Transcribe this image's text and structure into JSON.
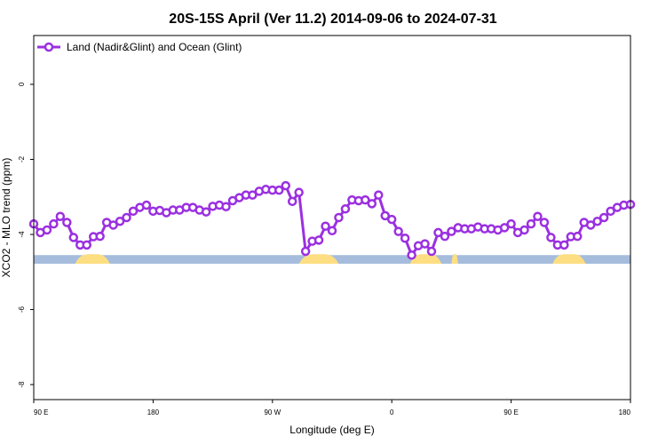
{
  "chart_data": {
    "type": "line",
    "title": "20S-15S April (Ver 11.2)   2014-09-06 to 2024-07-31",
    "xlabel": "Longitude (deg E)",
    "ylabel": "XCO2 - MLO trend (ppm)",
    "xlim": [
      0,
      360
    ],
    "ylim": [
      -8.4,
      1.3
    ],
    "x_ticks": [
      {
        "value": 0,
        "label": "90 E"
      },
      {
        "value": 72,
        "label": "180"
      },
      {
        "value": 144,
        "label": "90 W"
      },
      {
        "value": 216,
        "label": "0"
      },
      {
        "value": 288,
        "label": "90 E"
      },
      {
        "value": 360,
        "label": "180"
      }
    ],
    "y_ticks": [
      {
        "value": 0,
        "label": "0"
      },
      {
        "value": -2,
        "label": "-2"
      },
      {
        "value": -4,
        "label": "-4"
      },
      {
        "value": -6,
        "label": "-6"
      },
      {
        "value": -8,
        "label": "-8"
      }
    ],
    "grid": false,
    "legend": {
      "position": "top-left"
    },
    "series": [
      {
        "name": "Land (Nadir&Glint) and Ocean (Glint)",
        "color": "#9b30e0",
        "x": [
          0,
          4,
          8,
          12,
          16,
          20,
          24,
          28,
          32,
          36,
          40,
          44,
          48,
          52,
          56,
          60,
          64,
          68,
          72,
          76,
          80,
          84,
          88,
          92,
          96,
          100,
          104,
          108,
          112,
          116,
          120,
          124,
          128,
          132,
          136,
          140,
          144,
          148,
          152,
          156,
          160,
          164,
          168,
          172,
          176,
          180,
          184,
          188,
          192,
          196,
          200,
          204,
          208,
          212,
          216,
          220,
          224,
          228,
          232,
          236,
          240,
          244,
          248,
          252,
          256,
          260,
          264,
          268,
          272,
          276,
          280,
          284,
          288,
          292,
          296,
          300,
          304,
          308,
          312,
          316,
          320,
          324,
          328,
          332,
          336,
          340,
          344,
          348,
          352,
          356,
          360
        ],
        "y": [
          -3.72,
          -3.95,
          -3.88,
          -3.72,
          -3.52,
          -3.68,
          -4.08,
          -4.28,
          -4.28,
          -4.06,
          -4.05,
          -3.68,
          -3.75,
          -3.65,
          -3.55,
          -3.38,
          -3.28,
          -3.22,
          -3.38,
          -3.36,
          -3.42,
          -3.35,
          -3.35,
          -3.28,
          -3.28,
          -3.35,
          -3.4,
          -3.25,
          -3.22,
          -3.26,
          -3.1,
          -3.02,
          -2.95,
          -2.95,
          -2.85,
          -2.8,
          -2.82,
          -2.82,
          -2.7,
          -3.12,
          -2.88,
          -4.45,
          -4.18,
          -4.15,
          -3.78,
          -3.9,
          -3.55,
          -3.32,
          -3.08,
          -3.1,
          -3.08,
          -3.18,
          -2.95,
          -3.5,
          -3.6,
          -3.92,
          -4.1,
          -4.55,
          -4.3,
          -4.25,
          -4.45,
          -3.95,
          -4.05,
          -3.92,
          -3.82,
          -3.85,
          -3.85,
          -3.8,
          -3.85,
          -3.85,
          -3.88,
          -3.82,
          -3.72,
          -3.95,
          -3.88,
          -3.72,
          -3.52,
          -3.68,
          -4.08,
          -4.28,
          -4.28,
          -4.06,
          -4.05,
          -3.68,
          -3.75,
          -3.65,
          -3.55,
          -3.38,
          -3.28,
          -3.22,
          -3.2
        ]
      }
    ],
    "surface_band": {
      "y_top": -4.55,
      "y_bottom": -4.78,
      "ocean_color": "#a5bcdd",
      "land_color": "#fede82",
      "land_segments": [
        [
          25,
          46
        ],
        [
          160,
          184
        ],
        [
          227,
          246
        ],
        [
          252,
          256
        ],
        [
          313,
          333
        ]
      ]
    }
  }
}
